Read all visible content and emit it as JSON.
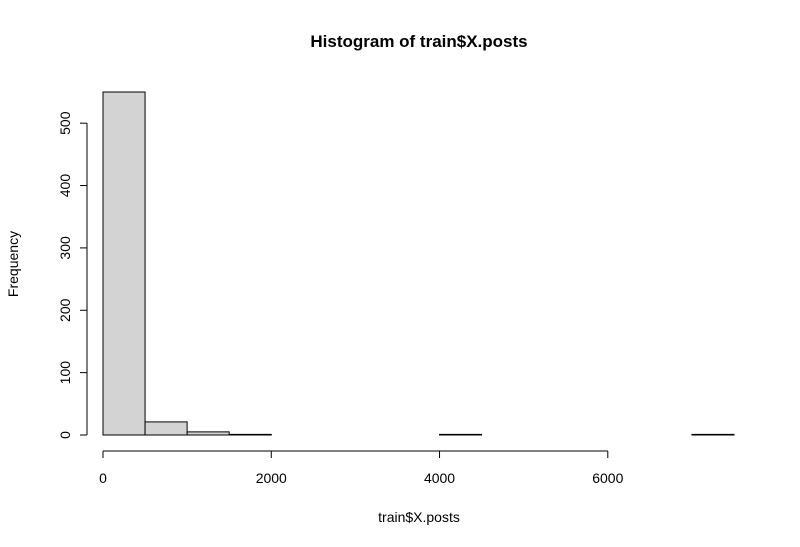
{
  "chart_data": {
    "type": "bar",
    "title": "Histogram of train$X.posts",
    "xlabel": "train$X.posts",
    "ylabel": "Frequency",
    "bins": [
      {
        "start": 0,
        "end": 500,
        "count": 550
      },
      {
        "start": 500,
        "end": 1000,
        "count": 21
      },
      {
        "start": 1000,
        "end": 1500,
        "count": 5
      },
      {
        "start": 1500,
        "end": 2000,
        "count": 1
      },
      {
        "start": 2000,
        "end": 2500,
        "count": 0
      },
      {
        "start": 2500,
        "end": 3000,
        "count": 0
      },
      {
        "start": 3000,
        "end": 3500,
        "count": 0
      },
      {
        "start": 3500,
        "end": 4000,
        "count": 0
      },
      {
        "start": 4000,
        "end": 4500,
        "count": 1
      },
      {
        "start": 4500,
        "end": 5000,
        "count": 0
      },
      {
        "start": 5000,
        "end": 5500,
        "count": 0
      },
      {
        "start": 5500,
        "end": 6000,
        "count": 0
      },
      {
        "start": 6000,
        "end": 6500,
        "count": 0
      },
      {
        "start": 6500,
        "end": 7000,
        "count": 0
      },
      {
        "start": 7000,
        "end": 7500,
        "count": 1
      }
    ],
    "xlim": [
      0,
      7500
    ],
    "ylim": [
      0,
      550
    ],
    "xticks": [
      0,
      2000,
      4000,
      6000
    ],
    "yticks": [
      0,
      100,
      200,
      300,
      400,
      500
    ],
    "xtick_labels": [
      "0",
      "2000",
      "4000",
      "6000"
    ],
    "ytick_labels": [
      "0",
      "100",
      "200",
      "300",
      "400",
      "500"
    ],
    "bar_fill": "#d3d3d3",
    "bar_stroke": "#000000",
    "grid": false,
    "legend": "none"
  }
}
